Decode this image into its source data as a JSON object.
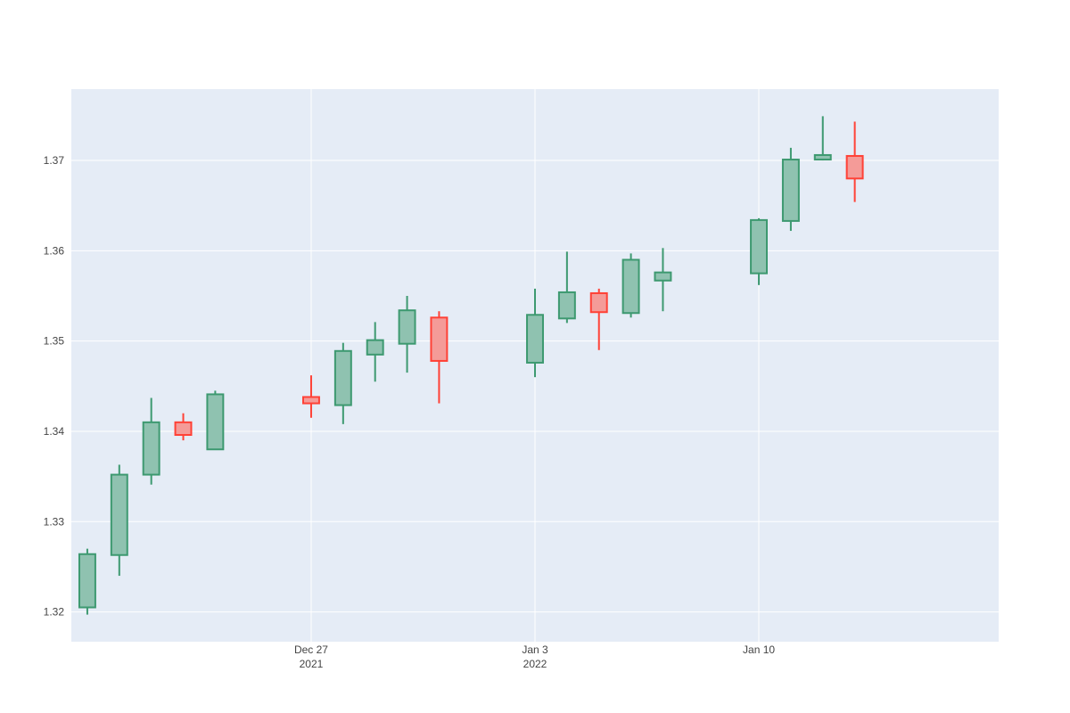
{
  "chart_data": {
    "type": "candlestick",
    "x_type": "date",
    "x_ticks": [
      {
        "date": "2021-12-27",
        "line1": "Dec 27",
        "line2": "2021"
      },
      {
        "date": "2022-01-03",
        "line1": "Jan 3",
        "line2": "2022"
      },
      {
        "date": "2022-01-10",
        "line1": "Jan 10",
        "line2": ""
      }
    ],
    "y_ticks": [
      1.32,
      1.33,
      1.34,
      1.35,
      1.36,
      1.37
    ],
    "y_tick_labels": [
      "1.32",
      "1.33",
      "1.34",
      "1.35",
      "1.36",
      "1.37"
    ],
    "ylim": [
      1.3167,
      1.3779
    ],
    "xlim": [
      "2021-12-19T12:00",
      "2022-01-17T12:00"
    ],
    "colors": {
      "increasing_line": "#3d9970",
      "increasing_fill": "#8fc2b0",
      "decreasing_line": "#ff4136",
      "decreasing_fill": "#f49b98",
      "plot_bg": "#e5ecf6",
      "grid": "#ffffff"
    },
    "candles": [
      {
        "date": "2021-12-20",
        "open": 1.3205,
        "high": 1.327,
        "low": 1.3197,
        "close": 1.3264
      },
      {
        "date": "2021-12-21",
        "open": 1.3263,
        "high": 1.3363,
        "low": 1.324,
        "close": 1.3352
      },
      {
        "date": "2021-12-22",
        "open": 1.3352,
        "high": 1.3437,
        "low": 1.3341,
        "close": 1.341
      },
      {
        "date": "2021-12-23",
        "open": 1.341,
        "high": 1.342,
        "low": 1.339,
        "close": 1.3396
      },
      {
        "date": "2021-12-24",
        "open": 1.338,
        "high": 1.3445,
        "low": 1.338,
        "close": 1.3441
      },
      {
        "date": "2021-12-27",
        "open": 1.3438,
        "high": 1.3462,
        "low": 1.3415,
        "close": 1.3431
      },
      {
        "date": "2021-12-28",
        "open": 1.3429,
        "high": 1.3498,
        "low": 1.3408,
        "close": 1.3489
      },
      {
        "date": "2021-12-29",
        "open": 1.3485,
        "high": 1.3521,
        "low": 1.3455,
        "close": 1.3501
      },
      {
        "date": "2021-12-30",
        "open": 1.3497,
        "high": 1.355,
        "low": 1.3465,
        "close": 1.3534
      },
      {
        "date": "2021-12-31",
        "open": 1.3526,
        "high": 1.3533,
        "low": 1.3431,
        "close": 1.3478
      },
      {
        "date": "2022-01-03",
        "open": 1.3476,
        "high": 1.3558,
        "low": 1.346,
        "close": 1.3529
      },
      {
        "date": "2022-01-04",
        "open": 1.3525,
        "high": 1.3599,
        "low": 1.352,
        "close": 1.3554
      },
      {
        "date": "2022-01-05",
        "open": 1.3553,
        "high": 1.3558,
        "low": 1.349,
        "close": 1.3532
      },
      {
        "date": "2022-01-06",
        "open": 1.3531,
        "high": 1.3597,
        "low": 1.3526,
        "close": 1.359
      },
      {
        "date": "2022-01-07",
        "open": 1.3567,
        "high": 1.3603,
        "low": 1.3533,
        "close": 1.3576
      },
      {
        "date": "2022-01-10",
        "open": 1.3575,
        "high": 1.3636,
        "low": 1.3562,
        "close": 1.3634
      },
      {
        "date": "2022-01-11",
        "open": 1.3633,
        "high": 1.3714,
        "low": 1.3622,
        "close": 1.3701
      },
      {
        "date": "2022-01-12",
        "open": 1.3701,
        "high": 1.3749,
        "low": 1.37,
        "close": 1.3706
      },
      {
        "date": "2022-01-13",
        "open": 1.3705,
        "high": 1.3743,
        "low": 1.3654,
        "close": 1.368
      }
    ]
  }
}
